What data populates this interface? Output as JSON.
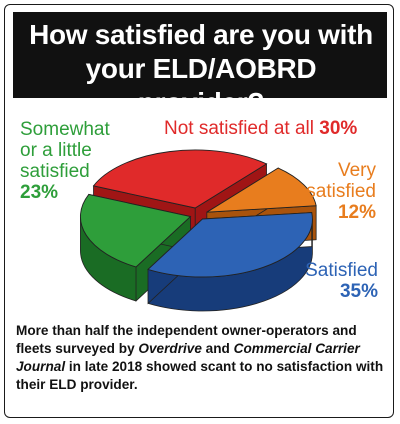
{
  "title": {
    "line1": "How satisfied are you with",
    "line2": "your ELD/AOBRD provider?"
  },
  "chart_data": {
    "type": "pie",
    "title": "How satisfied are you with your ELD/AOBRD provider?",
    "slices": [
      {
        "label": "Not satisfied at all",
        "value": 30,
        "display": "30%",
        "color": "#e02a2a",
        "side": "#a01515"
      },
      {
        "label": "Very satisfied",
        "value": 12,
        "display": "12%",
        "color": "#e87d1e",
        "side": "#a9530c"
      },
      {
        "label": "Satisfied",
        "value": 35,
        "display": "35%",
        "color": "#2d63b5",
        "side": "#173c7a"
      },
      {
        "label": "Somewhat or a little satisfied",
        "value": 23,
        "display": "23%",
        "color": "#2e9e3a",
        "side": "#1a6c24"
      }
    ]
  },
  "labels": {
    "not_satisfied": {
      "line1": "Not satisfied at all",
      "pct": "30%"
    },
    "very": {
      "line1": "Very",
      "line2": "satisfied",
      "pct": "12%"
    },
    "satisfied": {
      "line1": "Satisfied",
      "pct": "35%"
    },
    "somewhat": {
      "line1": "Somewhat",
      "line2": "or a little",
      "line3": "satisfied",
      "pct": "23%"
    }
  },
  "caption": {
    "part1": "More than half the independent owner-operators and fleets surveyed by ",
    "pub1": "Overdrive",
    "part2": " and ",
    "pub2": "Commercial Carrier Journal",
    "part3": " in late 2018 showed scant to no satisfaction with their ELD provider."
  }
}
